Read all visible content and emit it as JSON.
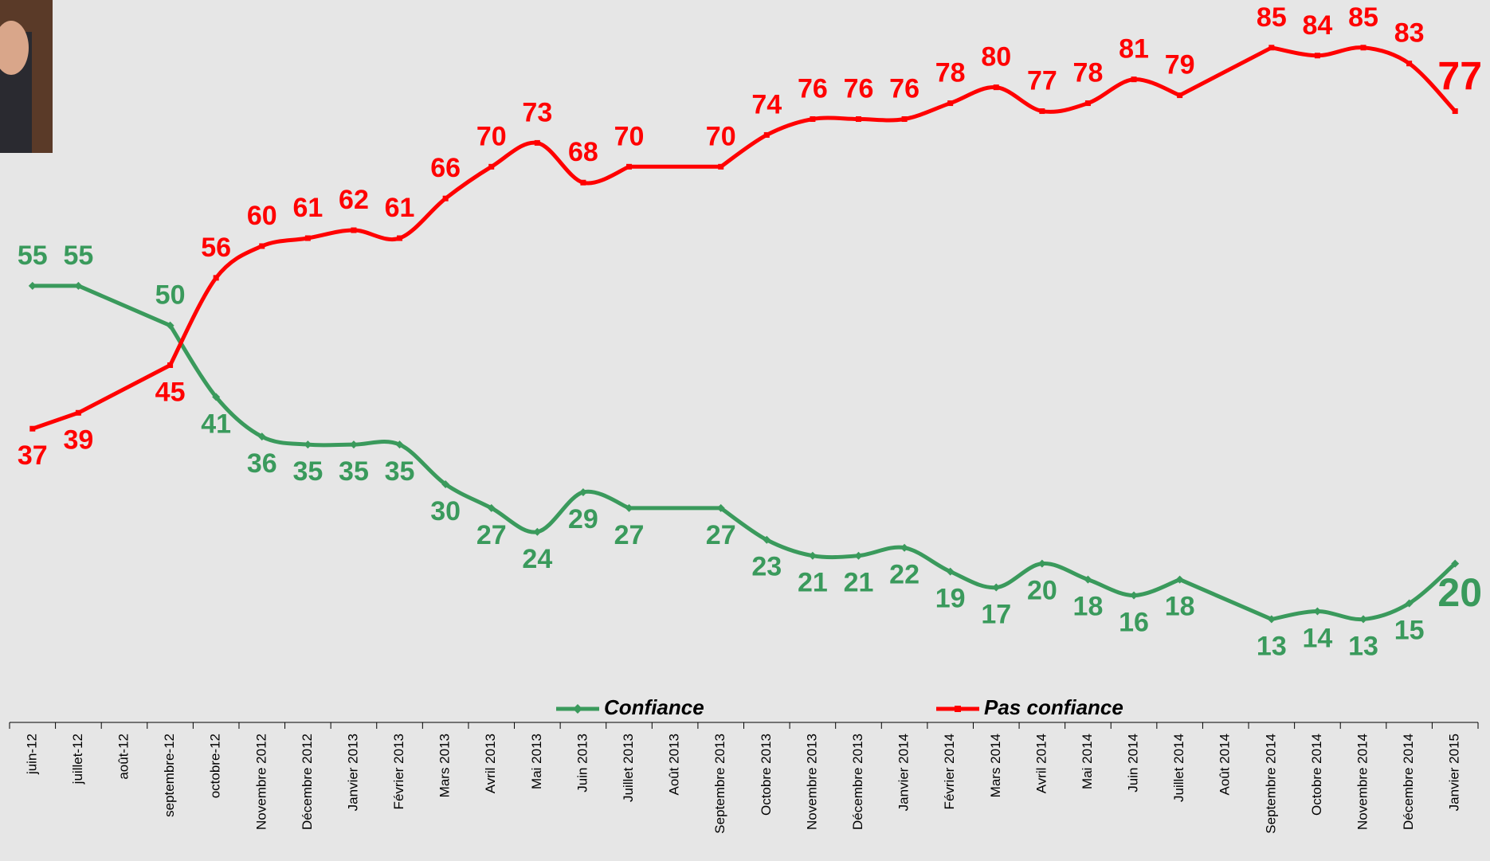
{
  "chart_data": {
    "type": "line",
    "categories": [
      "juin-12",
      "juillet-12",
      "août-12",
      "septembre-12",
      "octobre-12",
      "Novembre 2012",
      "Décembre 2012",
      "Janvier 2013",
      "Février 2013",
      "Mars 2013",
      "Avril 2013",
      "Mai 2013",
      "Juin 2013",
      "Juillet 2013",
      "Août 2013",
      "Septembre 2013",
      "Octobre 2013",
      "Novembre 2013",
      "Décembre 2013",
      "Janvier 2014",
      "Février 2014",
      "Mars 2014",
      "Avril 2014",
      "Mai 2014",
      "Juin 2014",
      "Juillet 2014",
      "Août 2014",
      "Septembre 2014",
      "Octobre 2014",
      "Novembre 2014",
      "Décembre 2014",
      "Janvier 2015"
    ],
    "series": [
      {
        "name": "Confiance",
        "color": "#3a9a5c",
        "marker": "diamond",
        "values": [
          55,
          55,
          null,
          50,
          41,
          36,
          35,
          35,
          35,
          30,
          27,
          24,
          29,
          27,
          null,
          27,
          23,
          21,
          21,
          22,
          19,
          17,
          20,
          18,
          16,
          18,
          null,
          13,
          14,
          13,
          15,
          20
        ]
      },
      {
        "name": "Pas confiance",
        "color": "#ff0000",
        "marker": "square",
        "values": [
          37,
          39,
          null,
          45,
          56,
          60,
          61,
          62,
          61,
          66,
          70,
          73,
          68,
          70,
          null,
          70,
          74,
          76,
          76,
          76,
          78,
          80,
          77,
          78,
          81,
          79,
          null,
          85,
          84,
          85,
          83,
          77
        ]
      }
    ],
    "ylim": [
      0,
      91
    ],
    "connect_gaps": true,
    "smooth": true,
    "legend": "bottom"
  }
}
